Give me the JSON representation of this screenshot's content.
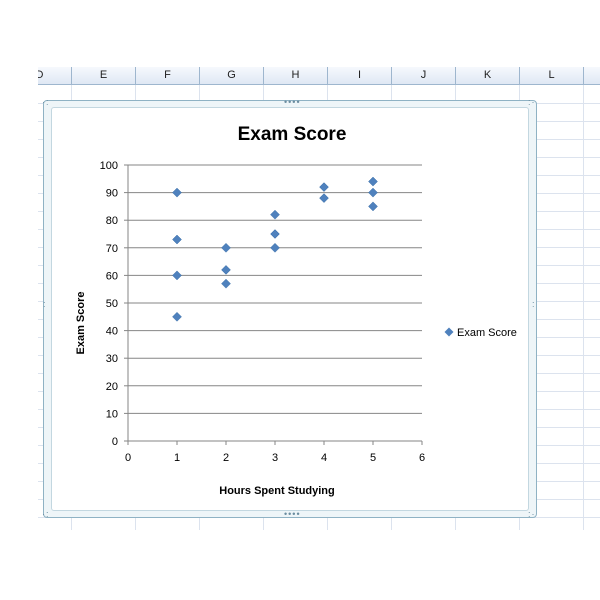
{
  "spreadsheet": {
    "column_headers": [
      "D",
      "E",
      "F",
      "G",
      "H",
      "I",
      "J",
      "K",
      "L"
    ]
  },
  "colors": {
    "marker": "#4f81bd",
    "gridline": "#868686",
    "axis": "#868686",
    "text": "#000000"
  },
  "chart_data": {
    "type": "scatter",
    "title": "Exam Score",
    "xlabel": "Hours Spent Studying",
    "ylabel": "Exam Score",
    "xlim": [
      0,
      6
    ],
    "ylim": [
      0,
      100
    ],
    "x_ticks": [
      0,
      1,
      2,
      3,
      4,
      5,
      6
    ],
    "y_ticks": [
      0,
      10,
      20,
      30,
      40,
      50,
      60,
      70,
      80,
      90,
      100
    ],
    "grid": "horizontal",
    "legend_position": "right",
    "marker": "diamond",
    "series": [
      {
        "name": "Exam Score",
        "x": [
          1,
          1,
          1,
          1,
          2,
          2,
          2,
          3,
          3,
          3,
          4,
          4,
          5,
          5,
          5
        ],
        "y": [
          90,
          73,
          60,
          45,
          70,
          62,
          57,
          82,
          75,
          70,
          92,
          88,
          94,
          90,
          85
        ]
      }
    ]
  }
}
